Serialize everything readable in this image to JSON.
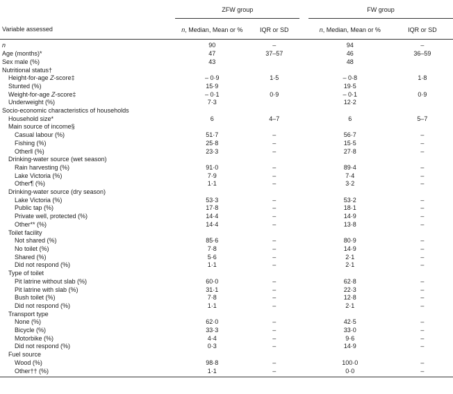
{
  "header": {
    "group1": "ZFW group",
    "group2": "FW group",
    "variable": "Variable assessed",
    "n_prefix": "n",
    "median_rest": ", Median, Mean or %",
    "iqr_prefix": "IQR or ",
    "sd": "SD"
  },
  "rows": [
    {
      "label": "n",
      "italic": true,
      "indent": 0,
      "z1": "90",
      "z2": "–",
      "f1": "94",
      "f2": "–"
    },
    {
      "label": "Age (months)*",
      "indent": 0,
      "z1": "47",
      "z2": "37–57",
      "f1": "46",
      "f2": "36–59"
    },
    {
      "label": "Sex male (%)",
      "indent": 0,
      "z1": "43",
      "z2": "",
      "f1": "48",
      "f2": ""
    },
    {
      "label": "Nutritional status†",
      "indent": 0,
      "z1": "",
      "z2": "",
      "f1": "",
      "f2": ""
    },
    {
      "label": "Height-for-age Z-score‡",
      "indent": 1,
      "z1": "– 0·9",
      "z2": "1·5",
      "f1": "– 0·8",
      "f2": "1·8"
    },
    {
      "label": "Stunted (%)",
      "indent": 1,
      "z1": "15·9",
      "z2": "",
      "f1": "19·5",
      "f2": ""
    },
    {
      "label": "Weight-for-age Z-score‡",
      "indent": 1,
      "z1": "– 0·1",
      "z2": "0·9",
      "f1": "– 0·1",
      "f2": "0·9"
    },
    {
      "label": "Underweight (%)",
      "indent": 1,
      "z1": "7·3",
      "z2": "",
      "f1": "12·2",
      "f2": ""
    },
    {
      "label": "Socio-economic characteristics of households",
      "indent": 0,
      "z1": "",
      "z2": "",
      "f1": "",
      "f2": ""
    },
    {
      "label": "Household size*",
      "indent": 1,
      "z1": "6",
      "z2": "4–7",
      "f1": "6",
      "f2": "5–7"
    },
    {
      "label": "Main source of income§",
      "indent": 1,
      "z1": "",
      "z2": "",
      "f1": "",
      "f2": ""
    },
    {
      "label": "Casual labour (%)",
      "indent": 2,
      "z1": "51·7",
      "z2": "–",
      "f1": "56·7",
      "f2": "–"
    },
    {
      "label": "Fishing (%)",
      "indent": 2,
      "z1": "25·8",
      "z2": "–",
      "f1": "15·5",
      "f2": "–"
    },
    {
      "label": "Other‖ (%)",
      "indent": 2,
      "z1": "23·3",
      "z2": "–",
      "f1": "27·8",
      "f2": "–"
    },
    {
      "label": "Drinking-water source (wet season)",
      "indent": 1,
      "z1": "",
      "z2": "",
      "f1": "",
      "f2": ""
    },
    {
      "label": "Rain harvesting (%)",
      "indent": 2,
      "z1": "91·0",
      "z2": "–",
      "f1": "89·4",
      "f2": "–"
    },
    {
      "label": "Lake Victoria (%)",
      "indent": 2,
      "z1": "7·9",
      "z2": "–",
      "f1": "7·4",
      "f2": "–"
    },
    {
      "label": "Other¶ (%)",
      "indent": 2,
      "z1": "1·1",
      "z2": "–",
      "f1": "3·2",
      "f2": "–"
    },
    {
      "label": "Drinking-water source (dry season)",
      "indent": 1,
      "z1": "",
      "z2": "",
      "f1": "",
      "f2": ""
    },
    {
      "label": "Lake Victoria (%)",
      "indent": 2,
      "z1": "53·3",
      "z2": "–",
      "f1": "53·2",
      "f2": "–"
    },
    {
      "label": "Public tap (%)",
      "indent": 2,
      "z1": "17·8",
      "z2": "–",
      "f1": "18·1",
      "f2": "–"
    },
    {
      "label": "Private well, protected (%)",
      "indent": 2,
      "z1": "14·4",
      "z2": "–",
      "f1": "14·9",
      "f2": "–"
    },
    {
      "label": "Other** (%)",
      "indent": 2,
      "z1": "14·4",
      "z2": "–",
      "f1": "13·8",
      "f2": "–"
    },
    {
      "label": "Toilet facility",
      "indent": 1,
      "z1": "",
      "z2": "",
      "f1": "",
      "f2": ""
    },
    {
      "label": "Not shared (%)",
      "indent": 2,
      "z1": "85·6",
      "z2": "–",
      "f1": "80·9",
      "f2": "–"
    },
    {
      "label": "No toilet (%)",
      "indent": 2,
      "z1": "7·8",
      "z2": "–",
      "f1": "14·9",
      "f2": "–"
    },
    {
      "label": "Shared (%)",
      "indent": 2,
      "z1": "5·6",
      "z2": "–",
      "f1": "2·1",
      "f2": "–"
    },
    {
      "label": "Did not respond (%)",
      "indent": 2,
      "z1": "1·1",
      "z2": "–",
      "f1": "2·1",
      "f2": "–"
    },
    {
      "label": "Type of toilet",
      "indent": 1,
      "z1": "",
      "z2": "",
      "f1": "",
      "f2": ""
    },
    {
      "label": "Pit latrine without slab (%)",
      "indent": 2,
      "z1": "60·0",
      "z2": "–",
      "f1": "62·8",
      "f2": "–"
    },
    {
      "label": "Pit latrine with slab (%)",
      "indent": 2,
      "z1": "31·1",
      "z2": "–",
      "f1": "22·3",
      "f2": "–"
    },
    {
      "label": "Bush toilet (%)",
      "indent": 2,
      "z1": "7·8",
      "z2": "–",
      "f1": "12·8",
      "f2": "–"
    },
    {
      "label": "Did not respond (%)",
      "indent": 2,
      "z1": "1·1",
      "z2": "–",
      "f1": "2·1",
      "f2": "–"
    },
    {
      "label": "Transport type",
      "indent": 1,
      "z1": "",
      "z2": "",
      "f1": "",
      "f2": ""
    },
    {
      "label": "None (%)",
      "indent": 2,
      "z1": "62·0",
      "z2": "–",
      "f1": "42·5",
      "f2": "–"
    },
    {
      "label": "Bicycle (%)",
      "indent": 2,
      "z1": "33·3",
      "z2": "–",
      "f1": "33·0",
      "f2": "–"
    },
    {
      "label": "Motorbike (%)",
      "indent": 2,
      "z1": "4·4",
      "z2": "–",
      "f1": "9·6",
      "f2": "–"
    },
    {
      "label": "Did not respond (%)",
      "indent": 2,
      "z1": "0·3",
      "z2": "–",
      "f1": "14·9",
      "f2": "–"
    },
    {
      "label": "Fuel source",
      "indent": 1,
      "z1": "",
      "z2": "",
      "f1": "",
      "f2": ""
    },
    {
      "label": "Wood (%)",
      "indent": 2,
      "z1": "98·8",
      "z2": "–",
      "f1": "100·0",
      "f2": "–"
    },
    {
      "label": "Other†† (%)",
      "indent": 2,
      "z1": "1·1",
      "z2": "–",
      "f1": "0·0",
      "f2": "–"
    }
  ]
}
